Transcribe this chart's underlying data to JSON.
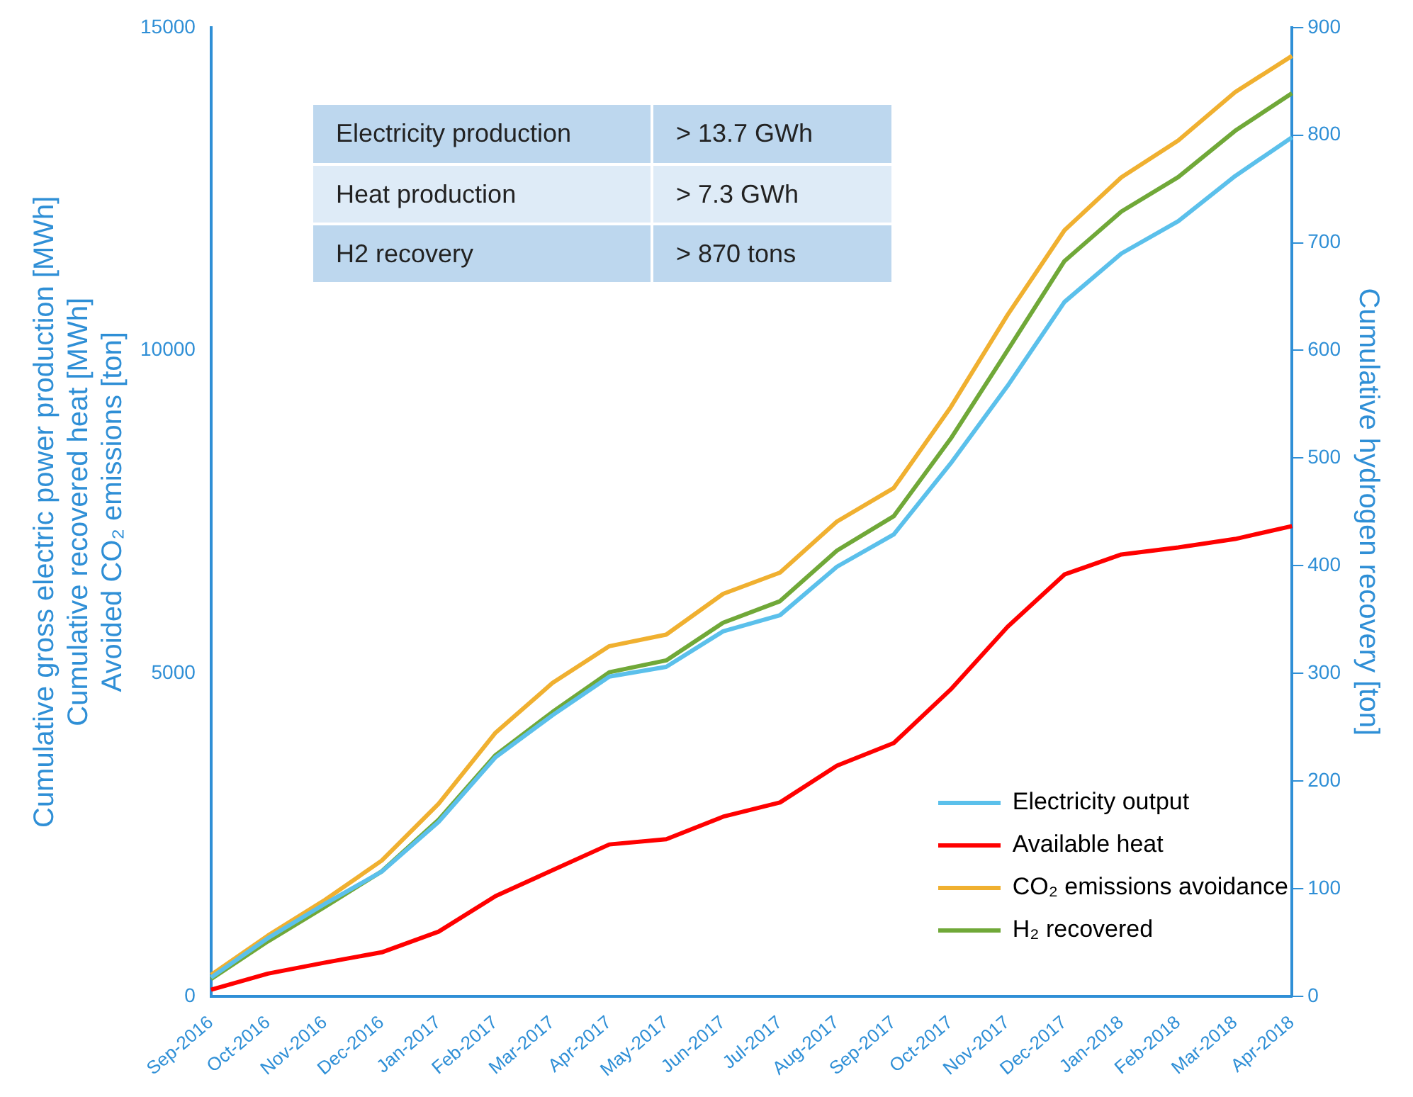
{
  "chart_data": {
    "type": "line",
    "ylabel": "Cumulative gross electric power production [MWh]\nCumulative recovered heat [MWh]\nAvoided CO₂ emissions [ton]",
    "y2label": "Cumulative hydrogen recovery [ton]",
    "categories": [
      "Sep-2016",
      "Oct-2016",
      "Nov-2016",
      "Dec-2016",
      "Jan-2017",
      "Feb-2017",
      "Mar-2017",
      "Apr-2017",
      "May-2017",
      "Jun-2017",
      "Jul-2017",
      "Aug-2017",
      "Sep-2017",
      "Oct-2017",
      "Nov-2017",
      "Dec-2017",
      "Jan-2018",
      "Feb-2018",
      "Mar-2018",
      "Apr-2018"
    ],
    "series": [
      {
        "name": "Electricity output",
        "color": "#5bc0eb",
        "values": [
          290,
          900,
          1430,
          1930,
          2700,
          3700,
          4350,
          4950,
          5100,
          5650,
          5900,
          6650,
          7150,
          8250,
          9450,
          10750,
          11500,
          12000,
          12700,
          13300
        ]
      },
      {
        "name": "Available heat",
        "color": "#ff0000",
        "values": [
          100,
          350,
          520,
          680,
          1000,
          1550,
          1950,
          2350,
          2430,
          2780,
          3000,
          3570,
          3920,
          4750,
          5720,
          6530,
          6840,
          6950,
          7080,
          7280
        ]
      },
      {
        "name": "CO₂ emissions avoidance",
        "color": "#f0b030",
        "values": [
          330,
          940,
          1490,
          2100,
          2980,
          4080,
          4850,
          5420,
          5600,
          6230,
          6560,
          7350,
          7870,
          9120,
          10550,
          11860,
          12680,
          13250,
          14000,
          14560
        ]
      },
      {
        "name": "H₂ recovered",
        "color": "#70a838",
        "axis": "y2",
        "values": [
          16,
          51,
          83,
          116,
          164,
          224,
          264,
          301,
          312,
          347,
          367,
          414,
          446,
          518,
          600,
          683,
          729,
          761,
          804,
          839
        ]
      }
    ],
    "ylim": [
      0,
      15000
    ],
    "yticks": [
      0,
      5000,
      10000,
      15000
    ],
    "y2lim": [
      0,
      900
    ],
    "y2ticks": [
      0,
      100,
      200,
      300,
      400,
      500,
      600,
      700,
      800,
      900
    ],
    "annotations": [
      "Electricity production",
      "> 13.7 GWh",
      "Heat production",
      "> 7.3 GWh",
      "H2 recovery",
      "> 870 tons"
    ],
    "grid": false,
    "legend": "bottom right",
    "marker": "none",
    "line_style": "solid"
  }
}
